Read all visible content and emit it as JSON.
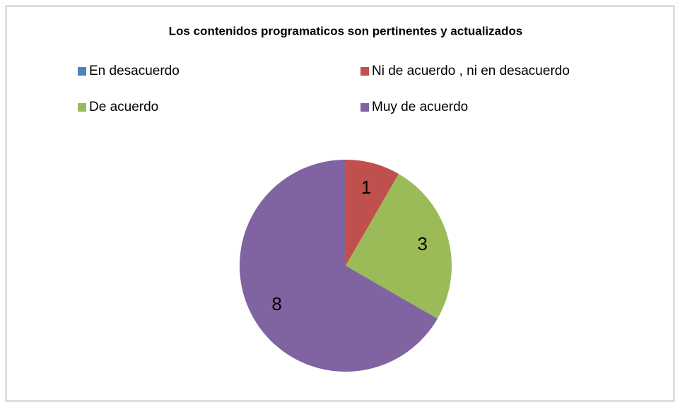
{
  "chart_data": {
    "type": "pie",
    "title": "Los contenidos programaticos  son pertinentes y actualizados",
    "categories": [
      "En desacuerdo",
      "Ni de acuerdo , ni en desacuerdo",
      "De acuerdo",
      "Muy de acuerdo"
    ],
    "values": [
      0,
      1,
      3,
      8
    ],
    "colors": [
      "#4f81bd",
      "#c0504d",
      "#9bbb59",
      "#8064a2"
    ],
    "legend": "top"
  }
}
